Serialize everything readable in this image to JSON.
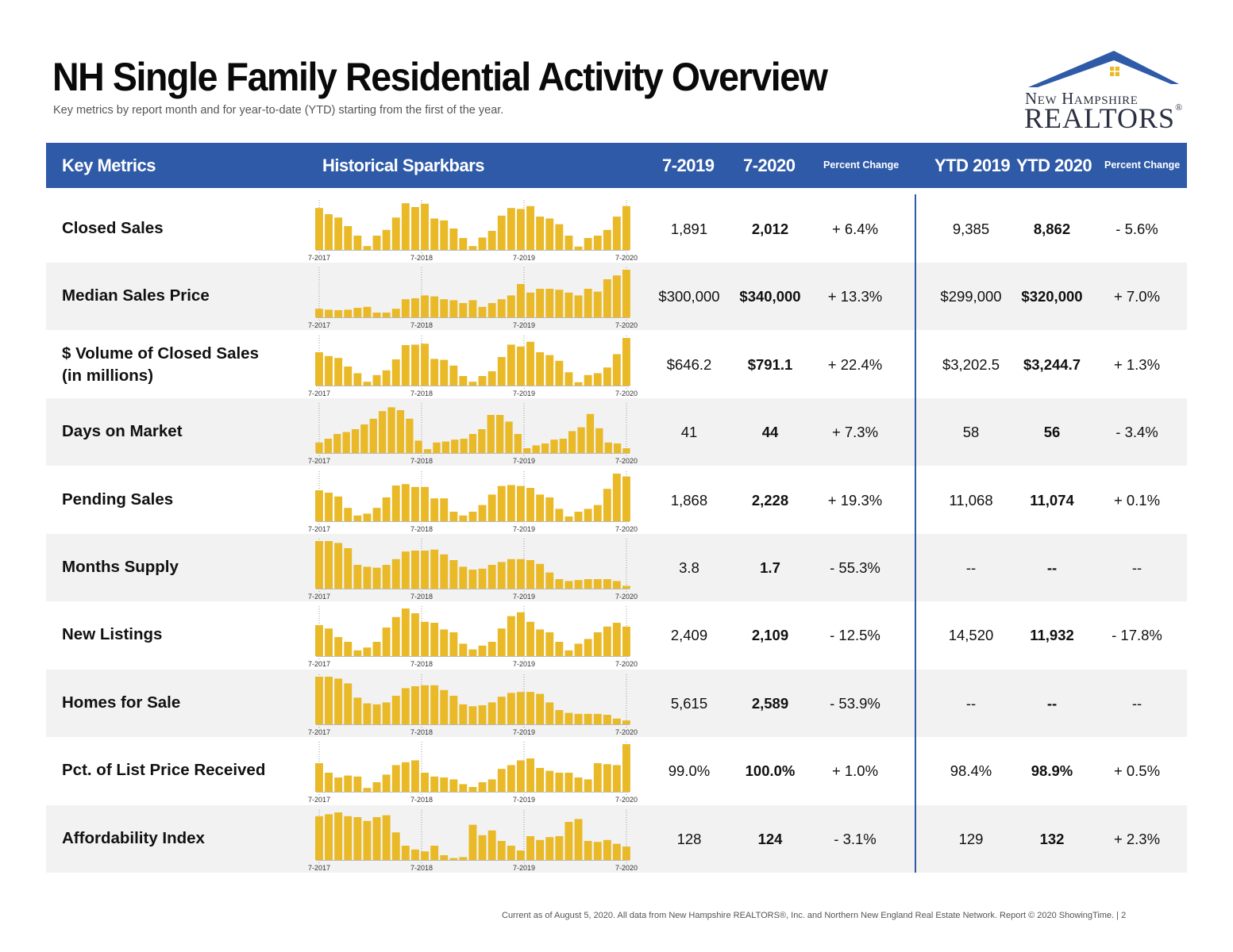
{
  "title": "NH Single Family Residential Activity Overview",
  "subtitle": "Key metrics by report month and for year-to-date (YTD) starting from the first of the year.",
  "logo": {
    "line1": "New Hampshire",
    "line2": "REALTORS",
    "mark": "®"
  },
  "header": {
    "key_metrics": "Key Metrics",
    "sparkbars": "Historical Sparkbars",
    "m2019": "7-2019",
    "m2020": "7-2020",
    "pct_change": "Percent Change",
    "ytd2019": "YTD 2019",
    "ytd2020": "YTD 2020",
    "ytd_pct_change": "Percent Change"
  },
  "colors": {
    "header_bg": "#2e5aa8",
    "bar": "#e9b928",
    "row_shade": "#f2f2f2"
  },
  "spark_axis_labels": [
    "7-2017",
    "7-2018",
    "7-2019",
    "7-2020"
  ],
  "rows": [
    {
      "label": "Closed Sales",
      "m2019": "1,891",
      "m2020": "2,012",
      "pct": "+ 6.4%",
      "ytd2019": "9,385",
      "ytd2020": "8,862",
      "ytd_pct": "- 5.6%",
      "bars": [
        0.88,
        0.75,
        0.68,
        0.5,
        0.3,
        0.08,
        0.3,
        0.42,
        0.68,
        0.98,
        0.9,
        0.97,
        0.66,
        0.62,
        0.45,
        0.25,
        0.08,
        0.26,
        0.4,
        0.72,
        0.88,
        0.86,
        0.92,
        0.7,
        0.66,
        0.54,
        0.3,
        0.07,
        0.25,
        0.3,
        0.42,
        0.7,
        0.92
      ]
    },
    {
      "label": "Median Sales Price",
      "m2019": "$300,000",
      "m2020": "$340,000",
      "pct": "+ 13.3%",
      "ytd2019": "$299,000",
      "ytd2020": "$320,000",
      "ytd_pct": "+ 7.0%",
      "bars": [
        0.18,
        0.16,
        0.15,
        0.16,
        0.2,
        0.22,
        0.1,
        0.1,
        0.18,
        0.38,
        0.4,
        0.46,
        0.44,
        0.38,
        0.36,
        0.3,
        0.36,
        0.22,
        0.3,
        0.38,
        0.46,
        0.7,
        0.52,
        0.6,
        0.6,
        0.58,
        0.52,
        0.46,
        0.6,
        0.54,
        0.8,
        0.88,
        1.0
      ]
    },
    {
      "label": "$ Volume of Closed Sales",
      "label2": "(in millions)",
      "m2019": "$646.2",
      "m2020": "$791.1",
      "pct": "+ 22.4%",
      "ytd2019": "$3,202.5",
      "ytd2020": "$3,244.7",
      "ytd_pct": "+ 1.3%",
      "bars": [
        0.7,
        0.62,
        0.58,
        0.4,
        0.26,
        0.08,
        0.22,
        0.32,
        0.55,
        0.85,
        0.86,
        0.88,
        0.56,
        0.54,
        0.42,
        0.2,
        0.08,
        0.2,
        0.3,
        0.6,
        0.86,
        0.82,
        0.92,
        0.7,
        0.64,
        0.52,
        0.28,
        0.07,
        0.22,
        0.26,
        0.38,
        0.66,
        1.0
      ]
    },
    {
      "label": "Days on Market",
      "m2019": "41",
      "m2020": "44",
      "pct": "+ 7.3%",
      "ytd2019": "58",
      "ytd2020": "56",
      "ytd_pct": "- 3.4%",
      "bars": [
        0.22,
        0.3,
        0.4,
        0.44,
        0.5,
        0.6,
        0.72,
        0.88,
        0.96,
        0.9,
        0.72,
        0.26,
        0.08,
        0.22,
        0.24,
        0.28,
        0.3,
        0.4,
        0.5,
        0.8,
        0.8,
        0.66,
        0.4,
        0.1,
        0.16,
        0.2,
        0.28,
        0.3,
        0.46,
        0.54,
        0.82,
        0.52,
        0.22,
        0.2,
        0.1
      ]
    },
    {
      "label": "Pending Sales",
      "m2019": "1,868",
      "m2020": "2,228",
      "pct": "+ 19.3%",
      "ytd2019": "11,068",
      "ytd2020": "11,074",
      "ytd_pct": "+ 0.1%",
      "bars": [
        0.65,
        0.6,
        0.52,
        0.28,
        0.12,
        0.16,
        0.28,
        0.5,
        0.75,
        0.78,
        0.72,
        0.72,
        0.48,
        0.48,
        0.2,
        0.12,
        0.2,
        0.34,
        0.56,
        0.74,
        0.76,
        0.74,
        0.7,
        0.56,
        0.5,
        0.26,
        0.1,
        0.2,
        0.26,
        0.34,
        0.68,
        1.0,
        0.94
      ]
    },
    {
      "label": "Months Supply",
      "m2019": "3.8",
      "m2020": "1.7",
      "pct": "- 55.3%",
      "ytd2019": "--",
      "ytd2020": "--",
      "ytd_pct": "--",
      "bars": [
        1.0,
        1.0,
        0.96,
        0.85,
        0.5,
        0.46,
        0.44,
        0.5,
        0.62,
        0.78,
        0.8,
        0.8,
        0.82,
        0.72,
        0.6,
        0.46,
        0.4,
        0.42,
        0.5,
        0.56,
        0.62,
        0.62,
        0.6,
        0.52,
        0.34,
        0.2,
        0.16,
        0.18,
        0.2,
        0.2,
        0.2,
        0.16,
        0.06
      ]
    },
    {
      "label": "New Listings",
      "m2019": "2,409",
      "m2020": "2,109",
      "pct": "- 12.5%",
      "ytd2019": "14,520",
      "ytd2020": "11,932",
      "ytd_pct": "- 17.8%",
      "bars": [
        0.65,
        0.58,
        0.4,
        0.3,
        0.12,
        0.18,
        0.3,
        0.6,
        0.82,
        1.0,
        0.9,
        0.72,
        0.7,
        0.56,
        0.5,
        0.26,
        0.14,
        0.22,
        0.3,
        0.58,
        0.84,
        0.92,
        0.72,
        0.56,
        0.5,
        0.3,
        0.12,
        0.26,
        0.36,
        0.5,
        0.62,
        0.7,
        0.62
      ]
    },
    {
      "label": "Homes for Sale",
      "m2019": "5,615",
      "m2020": "2,589",
      "pct": "- 53.9%",
      "ytd2019": "--",
      "ytd2020": "--",
      "ytd_pct": "--",
      "bars": [
        1.0,
        1.0,
        0.96,
        0.86,
        0.56,
        0.44,
        0.42,
        0.46,
        0.6,
        0.76,
        0.8,
        0.82,
        0.82,
        0.72,
        0.6,
        0.42,
        0.38,
        0.4,
        0.46,
        0.58,
        0.66,
        0.68,
        0.68,
        0.64,
        0.46,
        0.3,
        0.24,
        0.22,
        0.22,
        0.22,
        0.2,
        0.12,
        0.08
      ]
    },
    {
      "label": "Pct. of List Price Received",
      "m2019": "99.0%",
      "m2020": "100.0%",
      "pct": "+ 1.0%",
      "ytd2019": "98.4%",
      "ytd2020": "98.9%",
      "ytd_pct": "+ 0.5%",
      "bars": [
        0.6,
        0.4,
        0.3,
        0.34,
        0.32,
        0.08,
        0.2,
        0.36,
        0.56,
        0.62,
        0.66,
        0.4,
        0.32,
        0.3,
        0.26,
        0.16,
        0.1,
        0.2,
        0.26,
        0.48,
        0.56,
        0.66,
        0.7,
        0.5,
        0.44,
        0.4,
        0.4,
        0.3,
        0.26,
        0.6,
        0.58,
        0.56,
        1.0
      ]
    },
    {
      "label": "Affordability Index",
      "m2019": "128",
      "m2020": "124",
      "pct": "- 3.1%",
      "ytd2019": "129",
      "ytd2020": "132",
      "ytd_pct": "+ 2.3%",
      "bars": [
        0.92,
        0.96,
        1.0,
        0.92,
        0.9,
        0.82,
        0.9,
        0.94,
        0.58,
        0.3,
        0.22,
        0.18,
        0.3,
        0.1,
        0.04,
        0.06,
        0.74,
        0.52,
        0.62,
        0.4,
        0.3,
        0.2,
        0.5,
        0.42,
        0.48,
        0.5,
        0.8,
        0.86,
        0.4,
        0.38,
        0.42,
        0.34,
        0.28
      ]
    }
  ],
  "footer": "Current as of August 5, 2020. All data from New Hampshire REALTORS®, Inc. and Northern New England Real Estate Network. Report © 2020 ShowingTime. | 2"
}
